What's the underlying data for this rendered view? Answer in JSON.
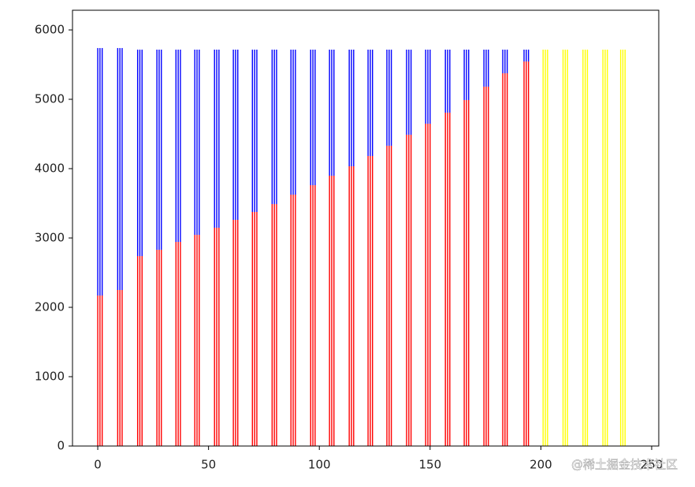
{
  "chart_data": {
    "type": "bar",
    "x": [
      1,
      10,
      19,
      27.7,
      36.3,
      44.8,
      53.7,
      62.2,
      70.8,
      79.7,
      88.2,
      97.1,
      105.6,
      114.5,
      123,
      131.5,
      140.4,
      149,
      157.9,
      166.4,
      175.3,
      183.8,
      193.4
    ],
    "series": [
      {
        "color": "#ff0000",
        "values": [
          2170,
          2250,
          2739,
          2830,
          2943,
          3045,
          3148,
          3261,
          3375,
          3489,
          3625,
          3761,
          3898,
          4034,
          4182,
          4330,
          4489,
          4648,
          4807,
          4989,
          5182,
          5375,
          5545
        ]
      },
      {
        "color": "#0000ff",
        "stacked": true,
        "values": [
          3569,
          3489,
          2977,
          2886,
          2773,
          2671,
          2568,
          2455,
          2341,
          2227,
          2091,
          1955,
          1818,
          1682,
          1534,
          1386,
          1227,
          1068,
          909,
          727,
          534,
          341,
          171
        ]
      },
      {
        "color": "#ffff00",
        "x": [
          202,
          211,
          220,
          229,
          237
        ],
        "values": [
          5716,
          5716,
          5716,
          5716,
          5716
        ]
      }
    ],
    "xlim": [
      -11.4,
      253.2
    ],
    "xticks": [
      0,
      50,
      100,
      150,
      200,
      250
    ],
    "ylim": [
      0,
      6284
    ],
    "yticks": [
      0,
      1000,
      2000,
      3000,
      4000,
      5000,
      6000
    ]
  },
  "watermark": "@稀土掘金技术社区"
}
